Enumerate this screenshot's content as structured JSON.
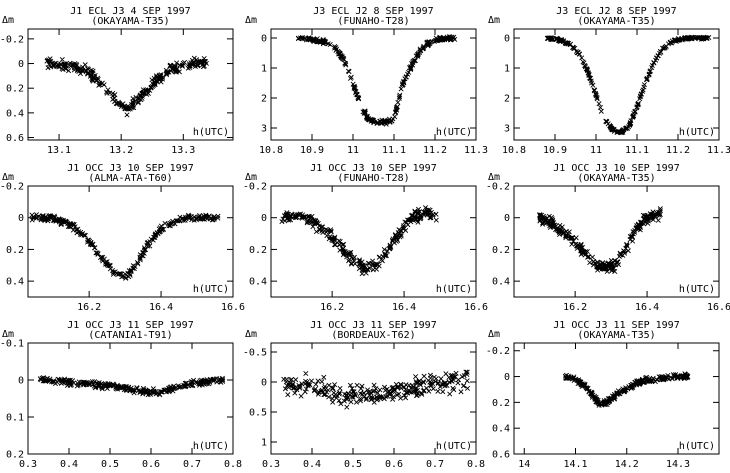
{
  "figure": {
    "ylabel": "Δm",
    "xlabel": "h(UTC)"
  },
  "chart_data": [
    {
      "type": "scatter",
      "title": "J1 ECL J3 4 SEP 1997",
      "subtitle": "(OKAYAMA-T35)",
      "xlabel": "h(UTC)",
      "ylabel": "Δm",
      "xlim": [
        13.05,
        13.38
      ],
      "ylim": [
        0.62,
        -0.28
      ],
      "y_inverted": true,
      "xticks": [
        13.1,
        13.2,
        13.3
      ],
      "xtick_labels": [
        "13.1",
        "13.2",
        "13.3"
      ],
      "yticks": [
        -0.2,
        0,
        0.2,
        0.4,
        0.6
      ],
      "ytick_labels": [
        "-0.2",
        "0",
        "0.2",
        "0.4",
        "0.6"
      ],
      "series": [
        {
          "x": [
            13.08,
            13.1,
            13.12,
            13.14,
            13.16,
            13.18,
            13.2,
            13.21,
            13.22,
            13.24,
            13.26,
            13.28,
            13.3,
            13.32,
            13.34
          ],
          "y": [
            0.0,
            0.01,
            0.02,
            0.05,
            0.12,
            0.24,
            0.34,
            0.37,
            0.33,
            0.22,
            0.12,
            0.05,
            0.02,
            0.0,
            -0.02
          ],
          "spread": 0.06
        }
      ]
    },
    {
      "type": "scatter",
      "title": "J3 ECL J2 8 SEP 1997",
      "subtitle": "(FUNAHO-T28)",
      "xlabel": "h(UTC)",
      "ylabel": "Δm",
      "xlim": [
        10.8,
        11.3
      ],
      "ylim": [
        3.4,
        -0.3
      ],
      "y_inverted": true,
      "xticks": [
        10.8,
        10.9,
        11.0,
        11.1,
        11.2,
        11.3
      ],
      "xtick_labels": [
        "10.8",
        "10.9",
        "11",
        "11.1",
        "11.2",
        "11.3"
      ],
      "yticks": [
        0,
        1,
        2,
        3
      ],
      "ytick_labels": [
        "0",
        "1",
        "2",
        "3"
      ],
      "series": [
        {
          "x": [
            10.86,
            10.88,
            10.94,
            10.96,
            10.98,
            11.0,
            11.02,
            11.04,
            11.06,
            11.08,
            11.1,
            11.12,
            11.14,
            11.16,
            11.18,
            11.2,
            11.22,
            11.24,
            11.25
          ],
          "y": [
            0.0,
            0.02,
            0.15,
            0.35,
            0.8,
            1.5,
            2.3,
            2.75,
            2.85,
            2.8,
            2.7,
            1.6,
            1.0,
            0.5,
            0.2,
            0.08,
            0.02,
            0.0,
            0.0
          ],
          "spread": 0.1
        }
      ]
    },
    {
      "type": "scatter",
      "title": "J3 ECL J2 8 SEP 1997",
      "subtitle": "(OKAYAMA-T35)",
      "xlabel": "h(UTC)",
      "ylabel": "Δm",
      "xlim": [
        10.8,
        11.3
      ],
      "ylim": [
        3.4,
        -0.3
      ],
      "y_inverted": true,
      "xticks": [
        10.8,
        10.9,
        11.0,
        11.1,
        11.2,
        11.3
      ],
      "xtick_labels": [
        "10.8",
        "10.9",
        "11",
        "11.1",
        "11.2",
        "11.3"
      ],
      "yticks": [
        0,
        1,
        2,
        3
      ],
      "ytick_labels": [
        "0",
        "1",
        "2",
        "3"
      ],
      "series": [
        {
          "x": [
            10.88,
            10.9,
            10.92,
            10.94,
            10.96,
            10.98,
            11.0,
            11.02,
            11.04,
            11.06,
            11.08,
            11.1,
            11.12,
            11.14,
            11.16,
            11.18,
            11.2,
            11.22,
            11.24,
            11.26,
            11.28
          ],
          "y": [
            0.0,
            0.03,
            0.1,
            0.25,
            0.55,
            1.1,
            1.9,
            2.7,
            3.05,
            3.15,
            2.95,
            2.3,
            1.5,
            0.85,
            0.4,
            0.15,
            0.05,
            0.01,
            0.0,
            0.0,
            0.0
          ],
          "spread": 0.06
        }
      ]
    },
    {
      "type": "scatter",
      "title": "J1 OCC J3 10 SEP 1997",
      "subtitle": "(ALMA-ATA-T60)",
      "xlabel": "h(UTC)",
      "ylabel": "Δm",
      "xlim": [
        16.03,
        16.6
      ],
      "ylim": [
        0.5,
        -0.2
      ],
      "y_inverted": true,
      "xticks": [
        16.2,
        16.4,
        16.6
      ],
      "xtick_labels": [
        "16.2",
        "16.4",
        "16.6"
      ],
      "yticks": [
        -0.2,
        0,
        0.2,
        0.4
      ],
      "ytick_labels": [
        "-0.2",
        "0",
        "0.2",
        "0.4"
      ],
      "series": [
        {
          "x": [
            16.04,
            16.08,
            16.12,
            16.16,
            16.2,
            16.24,
            16.27,
            16.3,
            16.33,
            16.36,
            16.4,
            16.44,
            16.48,
            16.52,
            16.56
          ],
          "y": [
            0.0,
            0.0,
            0.02,
            0.06,
            0.15,
            0.26,
            0.35,
            0.37,
            0.3,
            0.18,
            0.07,
            0.02,
            0.0,
            0.0,
            0.0
          ],
          "spread": 0.03
        }
      ]
    },
    {
      "type": "scatter",
      "title": "J1 OCC J3 10 SEP 1997",
      "subtitle": "(FUNAHO-T28)",
      "xlabel": "h(UTC)",
      "ylabel": "Δm",
      "xlim": [
        16.03,
        16.6
      ],
      "ylim": [
        0.5,
        -0.2
      ],
      "y_inverted": true,
      "xticks": [
        16.2,
        16.4,
        16.6
      ],
      "xtick_labels": [
        "16.2",
        "16.4",
        "16.6"
      ],
      "yticks": [
        -0.2,
        0,
        0.2,
        0.4
      ],
      "ytick_labels": [
        "-0.2",
        "0",
        "0.2",
        "0.4"
      ],
      "series": [
        {
          "x": [
            16.06,
            16.1,
            16.14,
            16.18,
            16.22,
            16.26,
            16.29,
            16.32,
            16.35,
            16.38,
            16.42,
            16.46,
            16.49
          ],
          "y": [
            0.0,
            -0.02,
            0.02,
            0.08,
            0.17,
            0.27,
            0.32,
            0.3,
            0.22,
            0.12,
            0.02,
            -0.04,
            0.0
          ],
          "spread": 0.06
        }
      ]
    },
    {
      "type": "scatter",
      "title": "J1 OCC J3 10 SEP 1997",
      "subtitle": "(OKAYAMA-T35)",
      "xlabel": "h(UTC)",
      "ylabel": "Δm",
      "xlim": [
        16.03,
        16.6
      ],
      "ylim": [
        0.5,
        -0.2
      ],
      "y_inverted": true,
      "xticks": [
        16.2,
        16.4,
        16.6
      ],
      "xtick_labels": [
        "16.2",
        "16.4",
        "16.6"
      ],
      "yticks": [
        -0.2,
        0,
        0.2,
        0.4
      ],
      "ytick_labels": [
        "-0.2",
        "0",
        "0.2",
        "0.4"
      ],
      "series": [
        {
          "x": [
            16.1,
            16.14,
            16.18,
            16.22,
            16.25,
            16.28,
            16.31,
            16.34,
            16.37,
            16.4,
            16.44
          ],
          "y": [
            0.0,
            0.04,
            0.11,
            0.2,
            0.27,
            0.32,
            0.3,
            0.2,
            0.08,
            0.0,
            -0.03
          ],
          "spread": 0.05
        }
      ]
    },
    {
      "type": "scatter",
      "title": "J1 OCC J3 11 SEP 1997",
      "subtitle": "(CATANIA1-T91)",
      "xlabel": "h(UTC)",
      "ylabel": "Δm",
      "xlim": [
        0.3,
        0.8
      ],
      "ylim": [
        0.2,
        -0.1
      ],
      "y_inverted": true,
      "xticks": [
        0.3,
        0.4,
        0.5,
        0.6,
        0.7,
        0.8
      ],
      "xtick_labels": [
        "0.3",
        "0.4",
        "0.5",
        "0.6",
        "0.7",
        "0.8"
      ],
      "yticks": [
        -0.1,
        0,
        0.1,
        0.2
      ],
      "ytick_labels": [
        "-0.1",
        "0",
        "0.1",
        "0.2"
      ],
      "series": [
        {
          "x": [
            0.33,
            0.38,
            0.43,
            0.48,
            0.53,
            0.57,
            0.6,
            0.63,
            0.66,
            0.7,
            0.74,
            0.78
          ],
          "y": [
            0.0,
            0.005,
            0.01,
            0.015,
            0.02,
            0.03,
            0.035,
            0.03,
            0.02,
            0.01,
            0.005,
            0.0
          ],
          "spread": 0.012
        }
      ]
    },
    {
      "type": "scatter",
      "title": "J1 OCC J3 11 SEP 1997",
      "subtitle": "(BORDEAUX-T62)",
      "xlabel": "h(UTC)",
      "ylabel": "Δm",
      "xlim": [
        0.3,
        0.8
      ],
      "ylim": [
        1.2,
        -0.65
      ],
      "y_inverted": true,
      "xticks": [
        0.3,
        0.4,
        0.5,
        0.6,
        0.7,
        0.8
      ],
      "xtick_labels": [
        "0.3",
        "0.4",
        "0.5",
        "0.6",
        "0.7",
        "0.8"
      ],
      "yticks": [
        -0.5,
        0,
        0.5,
        1
      ],
      "ytick_labels": [
        "-0.5",
        "0",
        "0.5",
        "1"
      ],
      "series": [
        {
          "x": [
            0.33,
            0.38,
            0.43,
            0.48,
            0.53,
            0.58,
            0.63,
            0.68,
            0.73,
            0.78
          ],
          "y": [
            0.0,
            0.05,
            0.12,
            0.2,
            0.22,
            0.2,
            0.12,
            0.05,
            0.0,
            -0.05
          ],
          "spread": 0.25
        }
      ]
    },
    {
      "type": "scatter",
      "title": "J1 OCC J3 11 SEP 1997",
      "subtitle": "(OKAYAMA-T35)",
      "xlabel": "h(UTC)",
      "ylabel": "Δm",
      "xlim": [
        13.98,
        14.38
      ],
      "ylim": [
        0.6,
        -0.26
      ],
      "y_inverted": true,
      "xticks": [
        14.0,
        14.1,
        14.2,
        14.3
      ],
      "xtick_labels": [
        "14",
        "14.1",
        "14.2",
        "14.3"
      ],
      "yticks": [
        -0.2,
        0,
        0.2,
        0.4,
        0.6
      ],
      "ytick_labels": [
        "-0.2",
        "0",
        "0.2",
        "0.4",
        "0.6"
      ],
      "series": [
        {
          "x": [
            14.08,
            14.1,
            14.12,
            14.14,
            14.15,
            14.16,
            14.18,
            14.2,
            14.22,
            14.24,
            14.26,
            14.28,
            14.3,
            14.32
          ],
          "y": [
            0.0,
            0.02,
            0.08,
            0.18,
            0.22,
            0.2,
            0.14,
            0.09,
            0.05,
            0.03,
            0.02,
            0.01,
            0.0,
            0.0
          ],
          "spread": 0.03
        }
      ]
    }
  ]
}
